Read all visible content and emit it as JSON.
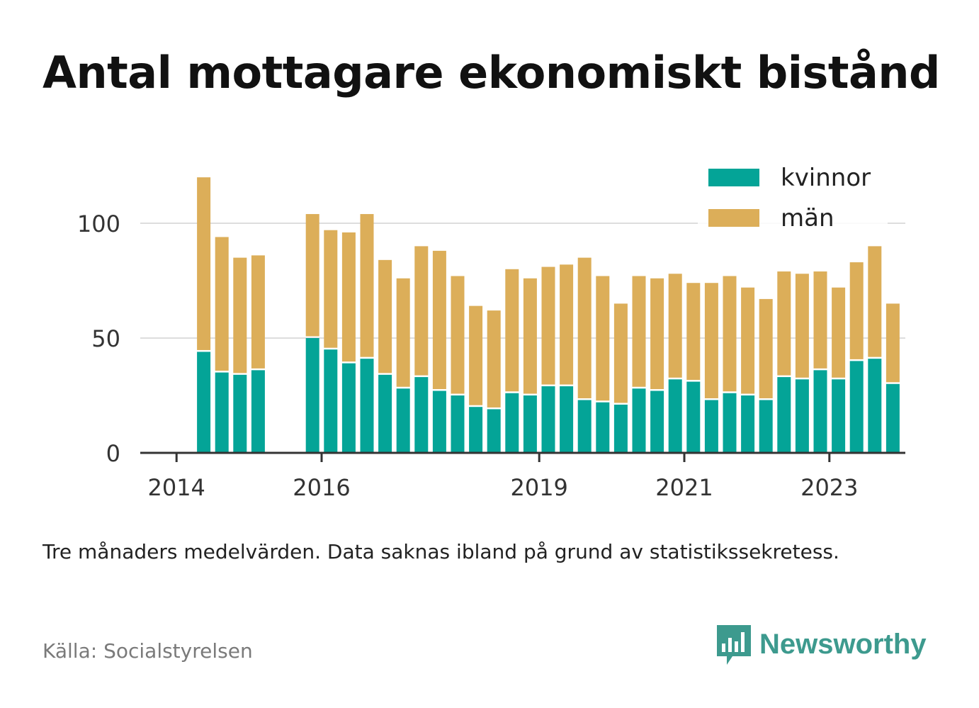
{
  "title": "Antal mottagare ekonomiskt bistånd",
  "note": "Tre månaders medelvärden. Data saknas ibland på grund av statistikssekretess.",
  "source": "Källa: Socialstyrelsen",
  "brand": "Newsworthy",
  "colors": {
    "kvinnor": "#04a497",
    "man": "#dcae59",
    "grid": "#dddddd",
    "axis": "#333333",
    "brand": "#3d9a8e"
  },
  "chart_data": {
    "type": "bar",
    "stacked": true,
    "x_axis": {
      "ticks": [
        "2014",
        "2016",
        "2019",
        "2021",
        "2023"
      ]
    },
    "y_axis": {
      "ticks": [
        0,
        50,
        100
      ],
      "ylim": [
        0,
        125
      ]
    },
    "grid": true,
    "legend_position": "top-right",
    "series": [
      {
        "name": "kvinnor",
        "values": [
          null,
          44,
          35,
          34,
          36,
          null,
          null,
          50,
          45,
          39,
          41,
          34,
          28,
          33,
          27,
          25,
          20,
          19,
          26,
          25,
          29,
          29,
          23,
          22,
          21,
          28,
          27,
          32,
          31,
          23,
          26,
          25,
          23,
          33,
          32,
          36,
          32,
          40,
          41,
          30
        ]
      },
      {
        "name": "män",
        "values": [
          null,
          76,
          59,
          51,
          50,
          null,
          null,
          54,
          52,
          57,
          63,
          50,
          48,
          57,
          61,
          52,
          44,
          43,
          54,
          51,
          52,
          53,
          62,
          55,
          44,
          49,
          49,
          46,
          43,
          51,
          51,
          47,
          44,
          46,
          46,
          43,
          40,
          43,
          49,
          35
        ]
      }
    ]
  }
}
